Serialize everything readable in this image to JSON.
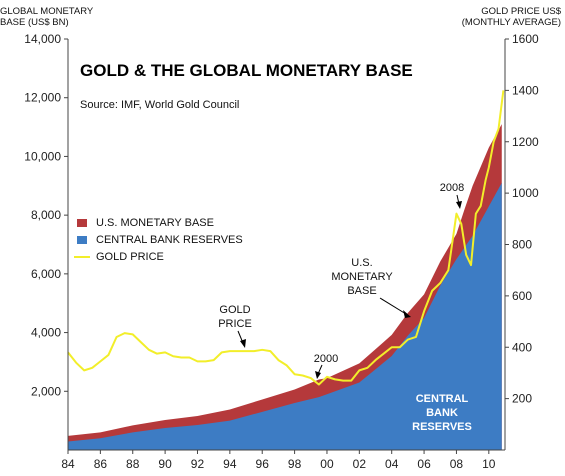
{
  "chart_data": {
    "type": "area",
    "title": "GOLD & THE GLOBAL MONETARY BASE",
    "subtitle": "Source:  IMF, World Gold Council",
    "y_left": {
      "label_lines": [
        "GLOBAL MONETARY",
        "BASE (US$ BN)"
      ],
      "range": [
        0,
        14000
      ],
      "ticks": [
        "2,000",
        "4,000",
        "6,000",
        "8,000",
        "10,000",
        "12,000",
        "14,000"
      ],
      "tick_values": [
        2000,
        4000,
        6000,
        8000,
        10000,
        12000,
        14000
      ]
    },
    "y_right": {
      "label_lines": [
        "GOLD PRICE US$",
        "(MONTHLY AVERAGE)"
      ],
      "range": [
        0,
        1600
      ],
      "ticks": [
        "200",
        "400",
        "600",
        "800",
        "1000",
        "1200",
        "1400",
        "1600"
      ],
      "tick_values": [
        200,
        400,
        600,
        800,
        1000,
        1200,
        1400,
        1600
      ]
    },
    "x": {
      "range": [
        1984,
        2011
      ],
      "ticks": [
        "84",
        "86",
        "88",
        "90",
        "92",
        "94",
        "96",
        "98",
        "00",
        "02",
        "04",
        "06",
        "08",
        "10"
      ],
      "tick_values": [
        1984,
        1986,
        1988,
        1990,
        1992,
        1994,
        1996,
        1998,
        2000,
        2002,
        2004,
        2006,
        2008,
        2010
      ]
    },
    "series": [
      {
        "name": "U.S. MONETARY BASE",
        "color": "#b5393b",
        "axis": "left",
        "stacked_on": "CENTRAL BANK RESERVES",
        "x": [
          1984,
          1986,
          1988,
          1990,
          1992,
          1994,
          1996,
          1998,
          1999.5,
          2000,
          2002,
          2004,
          2005,
          2006,
          2007,
          2008,
          2008.5,
          2009,
          2010,
          2010.8
        ],
        "values": [
          190,
          200,
          240,
          270,
          310,
          380,
          420,
          460,
          600,
          550,
          650,
          720,
          770,
          800,
          820,
          860,
          1300,
          1700,
          2000,
          2000
        ]
      },
      {
        "name": "CENTRAL BANK RESERVES",
        "color": "#3d7cc4",
        "axis": "left",
        "x": [
          1984,
          1986,
          1988,
          1990,
          1992,
          1994,
          1996,
          1998,
          1999.5,
          2000,
          2002,
          2004,
          2005,
          2006,
          2007,
          2008,
          2008.5,
          2009,
          2010,
          2010.8
        ],
        "values": [
          290,
          400,
          600,
          750,
          850,
          1000,
          1300,
          1600,
          1800,
          1900,
          2300,
          3200,
          3900,
          4500,
          5600,
          6500,
          6900,
          7300,
          8300,
          9100
        ]
      },
      {
        "name": "GOLD PRICE",
        "color": "#f2ee2a",
        "axis": "right",
        "x": [
          1984,
          1984.5,
          1985,
          1985.5,
          1986,
          1986.5,
          1987,
          1987.5,
          1988,
          1988.5,
          1989,
          1989.5,
          1990,
          1990.5,
          1991,
          1991.5,
          1992,
          1992.5,
          1993,
          1993.5,
          1994,
          1994.5,
          1995,
          1995.5,
          1996,
          1996.5,
          1997,
          1997.5,
          1998,
          1998.5,
          1999,
          1999.5,
          2000,
          2000.5,
          2001,
          2001.5,
          2002,
          2002.5,
          2003,
          2003.5,
          2004,
          2004.5,
          2005,
          2005.5,
          2006,
          2006.5,
          2007,
          2007.5,
          2008,
          2008.3,
          2008.6,
          2008.9,
          2009.2,
          2009.5,
          2009.8,
          2010,
          2010.3,
          2010.6,
          2010.9
        ],
        "values": [
          380,
          340,
          310,
          320,
          345,
          370,
          440,
          455,
          450,
          420,
          390,
          375,
          380,
          365,
          360,
          360,
          345,
          345,
          350,
          380,
          385,
          385,
          385,
          385,
          390,
          385,
          350,
          330,
          295,
          290,
          280,
          255,
          285,
          275,
          270,
          270,
          310,
          320,
          350,
          375,
          400,
          400,
          430,
          440,
          540,
          620,
          650,
          700,
          920,
          880,
          760,
          720,
          920,
          950,
          1050,
          1100,
          1200,
          1250,
          1400
        ]
      }
    ],
    "legend": {
      "placement": "left",
      "entries": [
        "U.S. MONETARY BASE",
        "CENTRAL BANK RESERVES",
        "GOLD PRICE"
      ]
    },
    "annotations": [
      {
        "text_lines": [
          "GOLD",
          "PRICE"
        ]
      },
      {
        "text_lines": [
          "2000"
        ]
      },
      {
        "text_lines": [
          "U.S.",
          "MONETARY",
          "BASE"
        ]
      },
      {
        "text_lines": [
          "2008"
        ]
      },
      {
        "text_lines": [
          "CENTRAL",
          "BANK",
          "RESERVES"
        ]
      }
    ],
    "grid": false
  }
}
